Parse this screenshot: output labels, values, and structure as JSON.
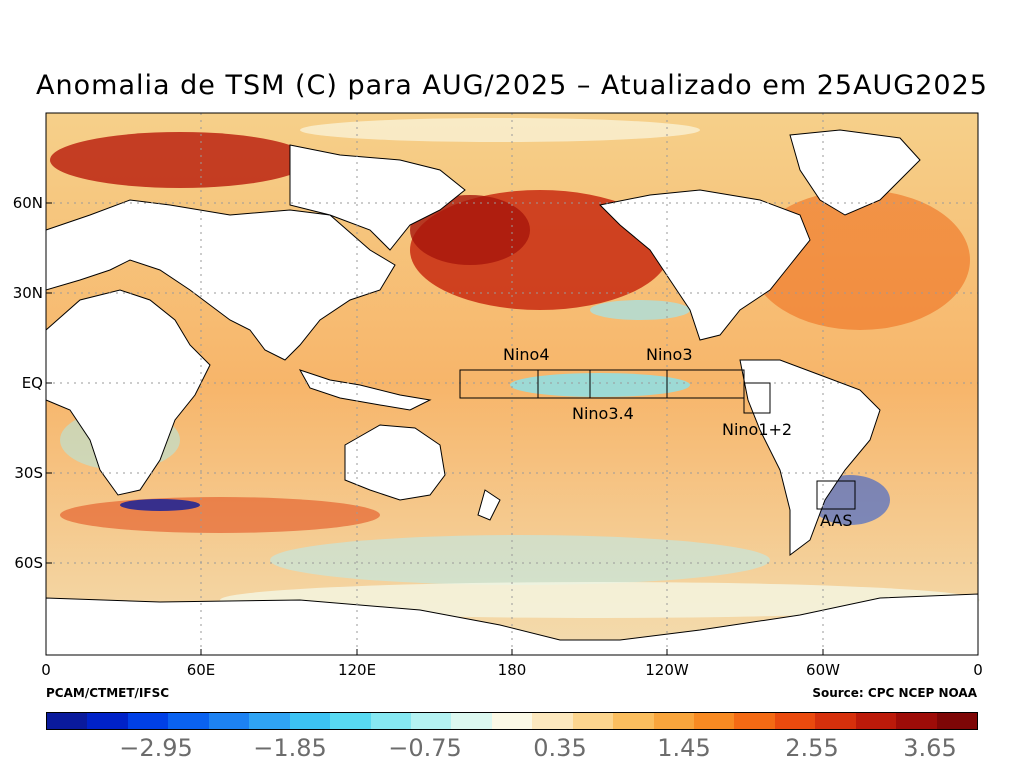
{
  "title": "Anomalia de TSM (C) para AUG/2025 – Atualizado em 25AUG2025",
  "credits": {
    "left": "PCAM/CTMET/IFSC",
    "right": "Source: CPC NCEP NOAA"
  },
  "lat_labels": [
    "60N",
    "30N",
    "EQ",
    "30S",
    "60S"
  ],
  "lon_labels": [
    "0",
    "60E",
    "120E",
    "180",
    "120W",
    "60W",
    "0"
  ],
  "regions": [
    {
      "label": "Nino4"
    },
    {
      "label": "Nino3.4"
    },
    {
      "label": "Nino3"
    },
    {
      "label": "Nino1+2"
    },
    {
      "label": "AAS"
    }
  ],
  "colorbar": {
    "colors": [
      "#0a1a9c",
      "#0022c8",
      "#0040e6",
      "#0a62f0",
      "#1d82f2",
      "#2fa4f4",
      "#3cc3f3",
      "#58daf2",
      "#86e8f2",
      "#b4f2f2",
      "#dcf8f0",
      "#fbf9e6",
      "#fce8be",
      "#fcd58e",
      "#fbbe5e",
      "#f9a53c",
      "#f88a22",
      "#f46a14",
      "#ea4a0e",
      "#d6300c",
      "#bc1a0a",
      "#9e0c08",
      "#7e0606"
    ],
    "labels": [
      "−2.95",
      "−1.85",
      "−0.75",
      "0.35",
      "1.45",
      "2.55",
      "3.65"
    ]
  }
}
